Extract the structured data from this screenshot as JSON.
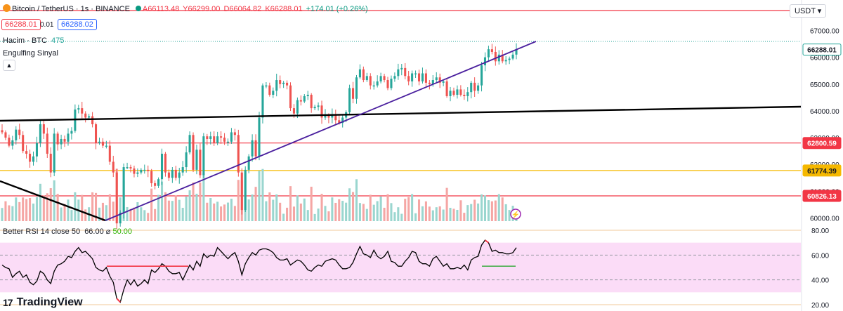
{
  "header": {
    "symbol": "Bitcoin / TetherUS · 1s · BINANCE",
    "open": "A66113.48",
    "high": "Y66299.00",
    "low": "D66064.82",
    "close": "K66288.01",
    "change": "+174.01 (+0.26%)",
    "sell_price": "66288.01",
    "spread": "0.01",
    "buy_price": "66288.02",
    "volume_label": "Hacim · BTC",
    "volume_value": "475",
    "indicator_label": "Engulfing Sinyal",
    "currency": "USDT"
  },
  "colors": {
    "up": "#26a69a",
    "down": "#ef5350",
    "red_line": "#f23645",
    "gold_line": "#f5b800",
    "trend_purple": "#4a1f9e",
    "rsi_band": "#fbdcf7"
  },
  "chart_data": {
    "type": "candlestick",
    "y_axis": {
      "min": 59500,
      "max": 67500,
      "ticks": [
        "67000.00",
        "66000.00",
        "65000.00",
        "64000.00",
        "63000.00",
        "62000.00",
        "61000.00",
        "60000.00"
      ]
    },
    "price_labels": [
      {
        "value": 66288.01,
        "text": "66288.01",
        "style": "current"
      },
      {
        "value": 62800.59,
        "text": "62800.59",
        "style": "red"
      },
      {
        "value": 61774.39,
        "text": "61774.39",
        "style": "gold"
      },
      {
        "value": 60826.13,
        "text": "60826.13",
        "style": "red"
      }
    ],
    "horizontal_lines": [
      {
        "value": 67420,
        "color": "red"
      },
      {
        "value": 62800.59,
        "color": "red"
      },
      {
        "value": 61774.39,
        "color": "gold"
      },
      {
        "value": 60826.13,
        "color": "red"
      }
    ],
    "closes": [
      63200,
      63000,
      62700,
      62900,
      63300,
      63100,
      62500,
      62400,
      62100,
      62300,
      62800,
      63500,
      63150,
      62400,
      61700,
      63150,
      62750,
      62950,
      62850,
      63150,
      63250,
      64050,
      64100,
      63900,
      63750,
      63800,
      63500,
      62800,
      62850,
      62700,
      62700,
      62100,
      61700,
      59800,
      60200,
      61900,
      61900,
      61850,
      61650,
      61700,
      61800,
      61800,
      61750,
      61300,
      61200,
      61450,
      62400,
      61700,
      61500,
      61800,
      61500,
      61700,
      61900,
      62450,
      63100,
      61800,
      62550,
      61600,
      63050,
      62950,
      63050,
      62800,
      63050,
      63000,
      62850,
      62850,
      63200,
      63100,
      61700,
      60300,
      61800,
      62300,
      62900,
      62300,
      63750,
      64950,
      64950,
      64600,
      64750,
      65150,
      65000,
      65050,
      64950,
      64100,
      63900,
      64400,
      64350,
      64550,
      64600,
      64100,
      64150,
      64200,
      63750,
      63850,
      63750,
      63850,
      63650,
      63550,
      63750,
      63950,
      64850,
      64450,
      65250,
      65550,
      65150,
      65300,
      64950,
      64950,
      65100,
      65300,
      65150,
      64850,
      65200,
      65300,
      65550,
      65600,
      65300,
      65100,
      65400,
      65400,
      65100,
      65400,
      65050,
      65000,
      65150,
      65250,
      65050,
      65100,
      64550,
      64750,
      64600,
      64800,
      64600,
      64550,
      64700,
      65050,
      64750,
      64950,
      65700,
      66000,
      66300,
      66200,
      65850,
      66100,
      65850,
      65900,
      65950,
      66100,
      66288
    ],
    "rsi": {
      "title": "Better RSI 14 close 50",
      "value": "66.00",
      "symbol": "⌀",
      "signal": "50.00",
      "ticks": [
        "80.00",
        "60.00",
        "40.00",
        "20.00"
      ],
      "values": [
        52,
        50,
        49,
        42,
        45,
        47,
        42,
        44,
        38,
        36,
        39,
        47,
        45,
        40,
        37,
        47,
        52,
        53,
        55,
        59,
        58,
        63,
        66,
        62,
        63,
        60,
        57,
        50,
        48,
        47,
        50,
        43,
        38,
        25,
        22,
        32,
        40,
        36,
        40,
        35,
        37,
        40,
        37,
        48,
        46,
        49,
        53,
        51,
        47,
        45,
        45,
        46,
        40,
        46,
        52,
        48,
        55,
        51,
        61,
        58,
        60,
        59,
        66,
        63,
        60,
        57,
        60,
        62,
        55,
        44,
        53,
        58,
        62,
        60,
        64,
        65,
        65,
        64,
        62,
        58,
        56,
        56,
        57,
        52,
        54,
        56,
        55,
        52,
        48,
        47,
        50,
        52,
        51,
        55,
        56,
        57,
        56,
        52,
        49,
        49,
        50,
        54,
        61,
        67,
        61,
        60,
        58,
        64,
        59,
        57,
        59,
        63,
        55,
        54,
        51,
        51,
        55,
        58,
        63,
        62,
        55,
        53,
        53,
        51,
        57,
        59,
        55,
        51,
        53,
        49,
        49,
        50,
        49,
        52,
        48,
        56,
        58,
        59,
        68,
        72,
        70,
        63,
        64,
        62,
        62,
        61,
        61,
        62,
        66
      ]
    }
  },
  "branding": {
    "mark": "17",
    "name": "TradingView"
  }
}
